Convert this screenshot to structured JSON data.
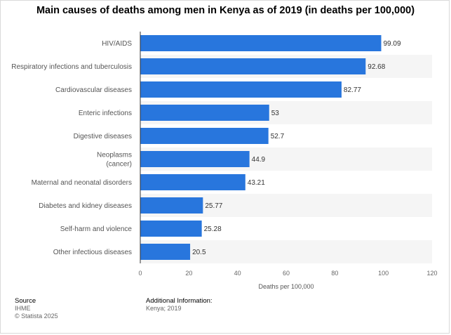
{
  "title": "Main causes of deaths among men in Kenya as of 2019 (in deaths per 100,000)",
  "chart_data": {
    "type": "bar",
    "orientation": "horizontal",
    "title": "Main causes of deaths among men in Kenya as of 2019 (in deaths per 100,000)",
    "categories": [
      "HIV/AIDS",
      "Respiratory infections and tuberculosis",
      "Cardiovascular diseases",
      "Enteric infections",
      "Digestive diseases",
      "Neoplasms (cancer)",
      "Maternal and neonatal disorders",
      "Diabetes and kidney diseases",
      "Self-harm and violence",
      "Other infectious diseases"
    ],
    "category_lines": [
      [
        "HIV/AIDS"
      ],
      [
        "Respiratory infections and tuberculosis"
      ],
      [
        "Cardiovascular diseases"
      ],
      [
        "Enteric infections"
      ],
      [
        "Digestive diseases"
      ],
      [
        "Neoplasms",
        "(cancer)"
      ],
      [
        "Maternal and neonatal disorders"
      ],
      [
        "Diabetes and kidney diseases"
      ],
      [
        "Self-harm and violence"
      ],
      [
        "Other infectious diseases"
      ]
    ],
    "values": [
      99.09,
      92.68,
      82.77,
      53,
      52.7,
      44.9,
      43.21,
      25.77,
      25.28,
      20.5
    ],
    "value_labels": [
      "99.09",
      "92.68",
      "82.77",
      "53",
      "52.7",
      "44.9",
      "43.21",
      "25.77",
      "25.28",
      "20.5"
    ],
    "xlabel": "Deaths per 100,000",
    "ylabel": "",
    "xlim": [
      0,
      120
    ],
    "xticks": [
      0,
      20,
      40,
      60,
      80,
      100,
      120
    ],
    "grid": false,
    "bar_color": "#2876dd",
    "stripe_color": "#f5f5f5"
  },
  "footer": {
    "source_heading": "Source",
    "source_name": "IHME",
    "copyright": "© Statista 2025",
    "info_heading": "Additional Information:",
    "info_text": "Kenya; 2019"
  }
}
